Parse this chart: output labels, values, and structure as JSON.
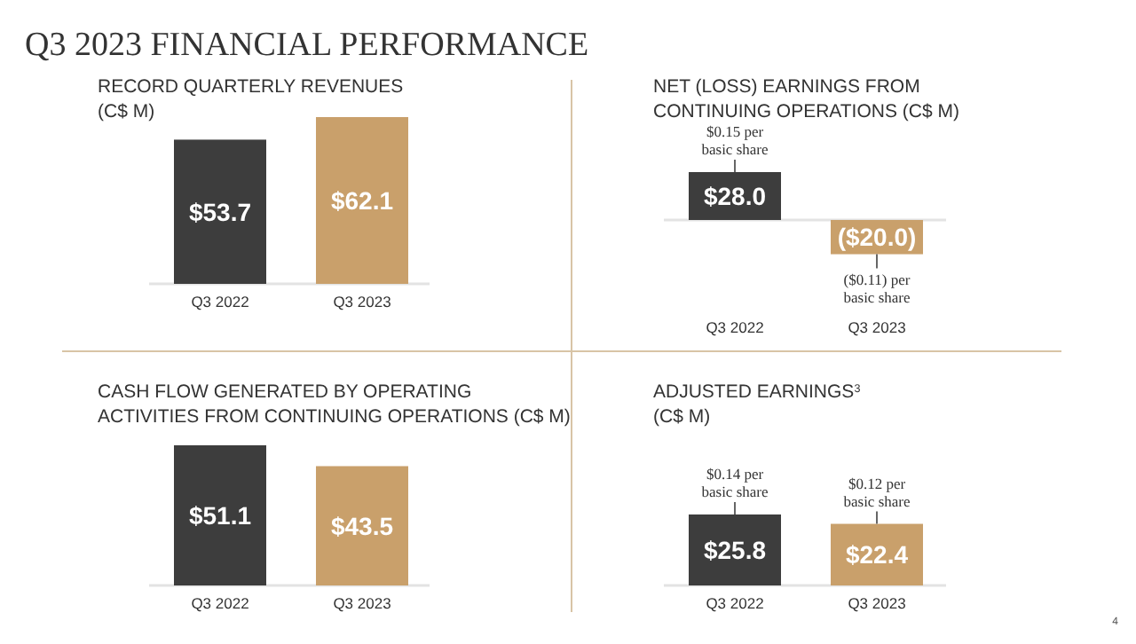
{
  "chart_data": [
    {
      "type": "bar",
      "title": "RECORD QUARTERLY REVENUES\n(C$ M)",
      "categories": [
        "Q3 2022",
        "Q3 2023"
      ],
      "values": [
        53.7,
        62.1
      ],
      "colors": [
        "#3d3d3d",
        "#c9a06b"
      ],
      "value_labels": [
        "$53.7",
        "$62.1"
      ],
      "annotations": [
        "Q3 2023 FINANCIAL PERFORMANCE"
      ]
    },
    {
      "type": "bar",
      "title": "NET (LOSS) EARNINGS FROM\nCONTINUING OPERATIONS (C$ M)",
      "categories": [
        "Q3 2022",
        "Q3 2023"
      ],
      "values": [
        28.0,
        -20.0
      ],
      "colors": [
        "#3d3d3d",
        "#c9a06b"
      ],
      "value_labels": [
        "$28.0",
        "($20.0)"
      ],
      "annotations": [
        {
          "text": "$0.15 per\nbasic share",
          "x": "Q3 2022",
          "y": 28.0
        },
        {
          "text": "($0.11) per\nbasic share",
          "x": "Q3 2023",
          "y": -20.0
        }
      ]
    },
    {
      "type": "bar",
      "title": "CASH FLOW GENERATED BY OPERATING\nACTIVITIES FROM CONTINUING OPERATIONS (C$ M)",
      "categories": [
        "Q3 2022",
        "Q3 2023"
      ],
      "values": [
        51.1,
        43.5
      ],
      "colors": [
        "#3d3d3d",
        "#c9a06b"
      ],
      "value_labels": [
        "$51.1",
        "$43.5"
      ]
    },
    {
      "type": "bar",
      "title": "ADJUSTED EARNINGS$^{3}$\n(C$ M)",
      "categories": [
        "Q3 2022",
        "Q3 2023"
      ],
      "values": [
        25.8,
        22.4
      ],
      "colors": [
        "#3d3d3d",
        "#c9a06b"
      ],
      "value_labels": [
        "$25.8",
        "$22.4"
      ],
      "annotations": [
        {
          "text": "$0.14 per\nbasic share",
          "x": "Q3 2022",
          "y": 25.8
        },
        {
          "text": "$0.12 per\nbasic share",
          "x": "Q3 2023",
          "y": 22.4
        },
        "4"
      ]
    }
  ]
}
